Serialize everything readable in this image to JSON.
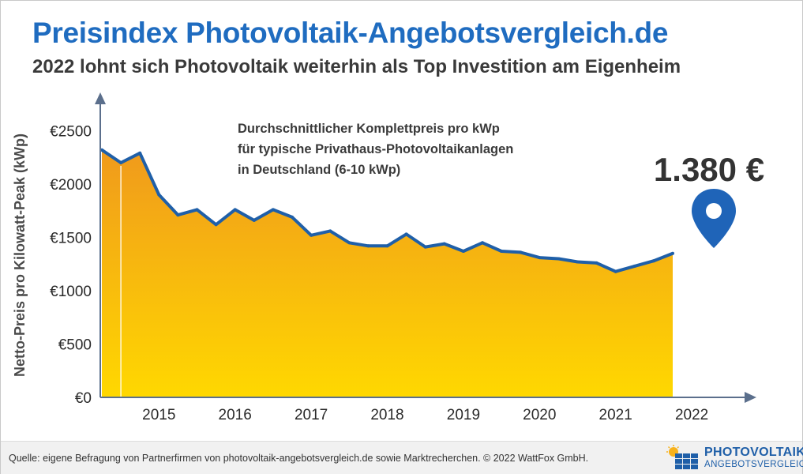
{
  "header": {
    "title": "Preisindex Photovoltaik-Angebotsvergleich.de",
    "subtitle": "2022 lohnt sich Photovoltaik weiterhin als Top Investition am Eigenheim"
  },
  "footer": {
    "source": "Quelle: eigene Befragung von Partnerfirmen von photovoltaik-angebotsvergleich.de sowie Marktrecherchen. © 2022 WattFox GmbH.",
    "logo_line1": "PHOTOVOLTAIK",
    "logo_line2": "ANGEBOTSVERGLEICH"
  },
  "colors": {
    "title": "#1f6cc0",
    "line": "#1f5fa8",
    "fill_top": "#f09a1c",
    "fill_bottom": "#ffd800",
    "marker": "#1f64b8"
  },
  "chart_data": {
    "type": "area",
    "title": "Durchschnittlicher Komplettpreis pro kWp für typische Privathaus-Photovoltaikanlagen in Deutschland (6-10 kWp)",
    "annotation_lines": [
      "Durchschnittlicher Komplettpreis pro kWp",
      "für typische Privathaus-Photovoltaikanlagen",
      "in Deutschland (6-10 kWp)"
    ],
    "callout": "1.380 €",
    "ylabel": "Netto-Preis pro Kilowatt-Peak (kWp)",
    "xlabel": "",
    "ylim": [
      0,
      2500
    ],
    "yticks": [
      0,
      500,
      1000,
      1500,
      2000,
      2500
    ],
    "ytick_labels": [
      "€0",
      "€500",
      "€1000",
      "€1500",
      "€2000",
      "€2500"
    ],
    "year_labels": [
      "2015",
      "2016",
      "2017",
      "2018",
      "2019",
      "2020",
      "2021",
      "2022"
    ],
    "x_start": 2014.25,
    "x_step": 0.25,
    "values": [
      2320,
      2200,
      2290,
      1900,
      1710,
      1760,
      1620,
      1760,
      1660,
      1760,
      1690,
      1520,
      1560,
      1450,
      1420,
      1420,
      1530,
      1410,
      1440,
      1370,
      1450,
      1370,
      1360,
      1310,
      1300,
      1270,
      1260,
      1180,
      1230,
      1280,
      1350
    ],
    "grid": false
  }
}
